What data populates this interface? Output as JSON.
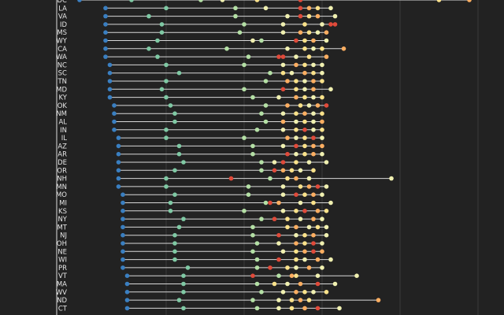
{
  "chart_data": {
    "type": "scatter",
    "subtype": "dot-range",
    "x_range": [
      0,
      100
    ],
    "colors": {
      "background": "#222222",
      "axis": "#dddddd",
      "grid": "#3a3a3a",
      "line": "#d8d8d8",
      "text": "#e6e6e6"
    },
    "group_colors": [
      "#3a7fc1",
      "#7fc9a4",
      "#b4e0a5",
      "#f0f0b0",
      "#fbe28a",
      "#fdae61",
      "#e04a3a"
    ],
    "rows": [
      {
        "state": "DC",
        "values": [
          2,
          14,
          30,
          35,
          43,
          53,
          85,
          92
        ],
        "groups": [
          0,
          1,
          2,
          3,
          4,
          6,
          4,
          5
        ]
      },
      {
        "state": "LA",
        "values": [
          8,
          22,
          38,
          45,
          53,
          55,
          57,
          60
        ],
        "groups": [
          0,
          1,
          2,
          3,
          6,
          5,
          4,
          3
        ]
      },
      {
        "state": "VA",
        "values": [
          8,
          18,
          38,
          50,
          53,
          55,
          57,
          61
        ],
        "groups": [
          0,
          1,
          2,
          3,
          6,
          4,
          5,
          3
        ]
      },
      {
        "state": "ID",
        "values": [
          8,
          21,
          40,
          49,
          54,
          58,
          60,
          61
        ],
        "groups": [
          0,
          1,
          2,
          3,
          4,
          3,
          6,
          6
        ]
      },
      {
        "state": "MS",
        "values": [
          8,
          21,
          39,
          49,
          53,
          55,
          57,
          59
        ],
        "groups": [
          0,
          1,
          2,
          3,
          5,
          4,
          3,
          5
        ]
      },
      {
        "state": "WY",
        "values": [
          8,
          20,
          42,
          44,
          52,
          54,
          56,
          59
        ],
        "groups": [
          0,
          1,
          3,
          2,
          6,
          4,
          5,
          3
        ]
      },
      {
        "state": "CA",
        "values": [
          8,
          18,
          36,
          50,
          54,
          56,
          58,
          63
        ],
        "groups": [
          0,
          1,
          2,
          3,
          4,
          3,
          4,
          5
        ]
      },
      {
        "state": "WA",
        "values": [
          8,
          20,
          41,
          48,
          49,
          52,
          55,
          59
        ],
        "groups": [
          0,
          1,
          2,
          6,
          6,
          3,
          4,
          5
        ]
      },
      {
        "state": "NC",
        "values": [
          9,
          22,
          40,
          49,
          52,
          54,
          56,
          58
        ],
        "groups": [
          0,
          1,
          2,
          3,
          5,
          4,
          3,
          3
        ]
      },
      {
        "state": "SC",
        "values": [
          9,
          25,
          46,
          49,
          51,
          54,
          56,
          58
        ],
        "groups": [
          0,
          1,
          2,
          4,
          3,
          5,
          4,
          3
        ]
      },
      {
        "state": "TN",
        "values": [
          9,
          22,
          45,
          50,
          52,
          54,
          56,
          58
        ],
        "groups": [
          0,
          1,
          2,
          5,
          4,
          3,
          5,
          4
        ]
      },
      {
        "state": "MD",
        "values": [
          9,
          21,
          40,
          49,
          52,
          54,
          56,
          60
        ],
        "groups": [
          0,
          1,
          2,
          6,
          4,
          3,
          5,
          3
        ]
      },
      {
        "state": "KY",
        "values": [
          9,
          22,
          42,
          48,
          52,
          54,
          56,
          58
        ],
        "groups": [
          0,
          1,
          2,
          3,
          5,
          4,
          3,
          4
        ]
      },
      {
        "state": "OK",
        "values": [
          10,
          23,
          45,
          50,
          53,
          55,
          57,
          59
        ],
        "groups": [
          0,
          1,
          2,
          5,
          4,
          3,
          5,
          6
        ]
      },
      {
        "state": "NM",
        "values": [
          10,
          24,
          44,
          49,
          52,
          54,
          56,
          58
        ],
        "groups": [
          0,
          1,
          2,
          3,
          4,
          5,
          3,
          4
        ]
      },
      {
        "state": "AL",
        "values": [
          10,
          24,
          45,
          49,
          52,
          54,
          56,
          58
        ],
        "groups": [
          0,
          1,
          2,
          5,
          3,
          4,
          3,
          5
        ]
      },
      {
        "state": "IN",
        "values": [
          10,
          22,
          43,
          49,
          52,
          54,
          56,
          58
        ],
        "groups": [
          0,
          1,
          2,
          3,
          4,
          6,
          3,
          4
        ]
      },
      {
        "state": "IL",
        "values": [
          11,
          22,
          40,
          50,
          52,
          54,
          56,
          58
        ],
        "groups": [
          0,
          1,
          2,
          5,
          3,
          4,
          6,
          3
        ]
      },
      {
        "state": "AZ",
        "values": [
          11,
          25,
          42,
          49,
          52,
          54,
          56,
          58
        ],
        "groups": [
          0,
          1,
          2,
          3,
          6,
          4,
          5,
          5
        ]
      },
      {
        "state": "AR",
        "values": [
          11,
          25,
          42,
          50,
          52,
          54,
          56,
          58
        ],
        "groups": [
          0,
          1,
          2,
          6,
          3,
          4,
          5,
          3
        ]
      },
      {
        "state": "DE",
        "values": [
          11,
          26,
          44,
          47,
          49,
          52,
          55,
          59
        ],
        "groups": [
          0,
          1,
          2,
          3,
          6,
          4,
          3,
          3
        ]
      },
      {
        "state": "OR",
        "values": [
          11,
          24,
          44,
          47,
          49,
          51,
          53,
          56
        ],
        "groups": [
          0,
          1,
          2,
          6,
          5,
          4,
          3,
          4
        ]
      },
      {
        "state": "NH",
        "values": [
          11,
          22,
          37,
          46,
          50,
          52,
          55,
          74
        ],
        "groups": [
          0,
          1,
          6,
          2,
          4,
          5,
          3,
          3
        ]
      },
      {
        "state": "MN",
        "values": [
          11,
          22,
          41,
          49,
          53,
          55,
          57,
          59
        ],
        "groups": [
          0,
          1,
          2,
          3,
          4,
          5,
          6,
          3
        ]
      },
      {
        "state": "MO",
        "values": [
          12,
          24,
          41,
          49,
          52,
          54,
          56,
          58
        ],
        "groups": [
          0,
          1,
          2,
          3,
          6,
          4,
          5,
          3
        ]
      },
      {
        "state": "MI",
        "values": [
          12,
          23,
          45,
          46,
          48,
          53,
          56,
          60
        ],
        "groups": [
          0,
          1,
          2,
          6,
          5,
          3,
          4,
          3
        ]
      },
      {
        "state": "KS",
        "values": [
          12,
          23,
          40,
          49,
          52,
          54,
          57,
          59
        ],
        "groups": [
          0,
          1,
          2,
          3,
          4,
          6,
          5,
          4
        ]
      },
      {
        "state": "NY",
        "values": [
          12,
          26,
          44,
          47,
          50,
          53,
          56,
          58
        ],
        "groups": [
          0,
          1,
          2,
          6,
          4,
          3,
          5,
          3
        ]
      },
      {
        "state": "MT",
        "values": [
          12,
          25,
          42,
          50,
          52,
          55,
          57,
          59
        ],
        "groups": [
          0,
          1,
          2,
          4,
          5,
          3,
          4,
          3
        ]
      },
      {
        "state": "NJ",
        "values": [
          12,
          24,
          42,
          48,
          52,
          54,
          56,
          59
        ],
        "groups": [
          0,
          1,
          2,
          6,
          3,
          4,
          5,
          3
        ]
      },
      {
        "state": "OH",
        "values": [
          12,
          24,
          43,
          48,
          52,
          54,
          56,
          58
        ],
        "groups": [
          0,
          1,
          2,
          3,
          5,
          4,
          6,
          3
        ]
      },
      {
        "state": "NE",
        "values": [
          12,
          24,
          42,
          49,
          52,
          54,
          56,
          58
        ],
        "groups": [
          0,
          1,
          2,
          3,
          4,
          5,
          6,
          5
        ]
      },
      {
        "state": "WI",
        "values": [
          12,
          24,
          43,
          48,
          52,
          54,
          57,
          60
        ],
        "groups": [
          0,
          1,
          2,
          6,
          4,
          3,
          5,
          3
        ]
      },
      {
        "state": "PR",
        "values": [
          12,
          27,
          43,
          46,
          50,
          52,
          55,
          58
        ],
        "groups": [
          0,
          1,
          2,
          6,
          4,
          3,
          5,
          3
        ]
      },
      {
        "state": "VT",
        "values": [
          13,
          26,
          42,
          48,
          51,
          52,
          57,
          66
        ],
        "groups": [
          0,
          1,
          6,
          2,
          5,
          4,
          3,
          3
        ]
      },
      {
        "state": "MA",
        "values": [
          13,
          26,
          43,
          47,
          50,
          53,
          57,
          61
        ],
        "groups": [
          0,
          1,
          2,
          4,
          3,
          5,
          6,
          3
        ]
      },
      {
        "state": "WV",
        "values": [
          13,
          26,
          44,
          49,
          52,
          54,
          56,
          59
        ],
        "groups": [
          0,
          1,
          2,
          3,
          5,
          4,
          3,
          4
        ]
      },
      {
        "state": "ND",
        "values": [
          13,
          25,
          42,
          48,
          51,
          53,
          55,
          71
        ],
        "groups": [
          0,
          1,
          2,
          3,
          4,
          5,
          4,
          5
        ]
      },
      {
        "state": "CT",
        "values": [
          13,
          26,
          43,
          48,
          51,
          54,
          57,
          62
        ],
        "groups": [
          0,
          1,
          2,
          3,
          4,
          5,
          6,
          3
        ]
      }
    ]
  }
}
